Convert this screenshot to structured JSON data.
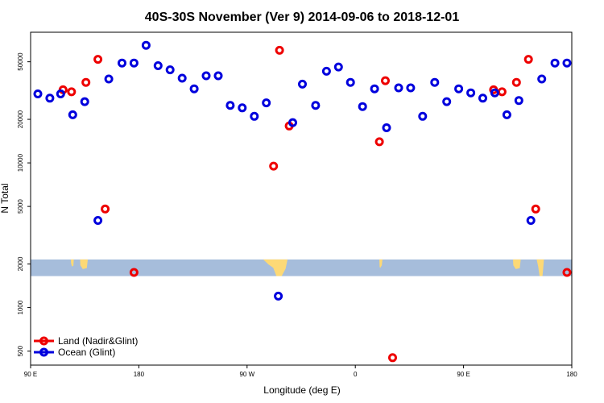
{
  "chart_data": {
    "type": "scatter",
    "title": "40S-30S November (Ver 9)   2014-09-06 to 2018-12-01",
    "xlabel": "Longitude (deg E)",
    "ylabel": "N Total",
    "x_scale": "longitude",
    "y_scale": "log",
    "xlim": [
      90,
      540
    ],
    "ylim": [
      400,
      80000
    ],
    "x_ticks": [
      {
        "value": 90,
        "label": "90 E"
      },
      {
        "value": 180,
        "label": "180"
      },
      {
        "value": 270,
        "label": "90 W"
      },
      {
        "value": 360,
        "label": "0"
      },
      {
        "value": 450,
        "label": "90 E"
      },
      {
        "value": 540,
        "label": "180"
      }
    ],
    "y_ticks": [
      {
        "value": 500,
        "label": "500"
      },
      {
        "value": 1000,
        "label": "1000"
      },
      {
        "value": 2000,
        "label": "2000"
      },
      {
        "value": 5000,
        "label": "5000"
      },
      {
        "value": 10000,
        "label": "10000"
      },
      {
        "value": 20000,
        "label": "20000"
      },
      {
        "value": 50000,
        "label": "50000"
      }
    ],
    "legend_position": "bottom-left",
    "map_band": {
      "ymin": 1650,
      "ymax": 2150,
      "ocean_color": "#a6bddb",
      "land_color": "#fdd976"
    },
    "series": [
      {
        "name": "Land (Nadir&Glint)",
        "color": "#ee0000",
        "points": [
          [
            117,
            32000
          ],
          [
            124,
            31000
          ],
          [
            136,
            36000
          ],
          [
            146,
            52000
          ],
          [
            152,
            4800
          ],
          [
            176,
            1750
          ],
          [
            292,
            9500
          ],
          [
            297,
            60000
          ],
          [
            305,
            18000
          ],
          [
            380,
            14000
          ],
          [
            385,
            37000
          ],
          [
            391,
            450
          ],
          [
            475,
            32000
          ],
          [
            482,
            31000
          ],
          [
            494,
            36000
          ],
          [
            504,
            52000
          ],
          [
            510,
            4800
          ],
          [
            536,
            1750
          ]
        ]
      },
      {
        "name": "Ocean (Glint)",
        "color": "#0000dd",
        "points": [
          [
            96,
            30000
          ],
          [
            106,
            28000
          ],
          [
            115,
            30000
          ],
          [
            125,
            21500
          ],
          [
            135,
            26500
          ],
          [
            146,
            4000
          ],
          [
            155,
            38000
          ],
          [
            166,
            49000
          ],
          [
            176,
            49000
          ],
          [
            186,
            65000
          ],
          [
            196,
            47000
          ],
          [
            206,
            44000
          ],
          [
            216,
            38500
          ],
          [
            226,
            32500
          ],
          [
            236,
            40000
          ],
          [
            246,
            40000
          ],
          [
            256,
            25000
          ],
          [
            266,
            24000
          ],
          [
            276,
            21000
          ],
          [
            286,
            26000
          ],
          [
            296,
            1200
          ],
          [
            308,
            19000
          ],
          [
            316,
            35000
          ],
          [
            327,
            25000
          ],
          [
            336,
            43000
          ],
          [
            346,
            46000
          ],
          [
            356,
            36000
          ],
          [
            366,
            24500
          ],
          [
            376,
            32500
          ],
          [
            386,
            17500
          ],
          [
            396,
            33000
          ],
          [
            406,
            33000
          ],
          [
            416,
            21000
          ],
          [
            426,
            36000
          ],
          [
            436,
            26500
          ],
          [
            446,
            32500
          ],
          [
            456,
            30500
          ],
          [
            466,
            28000
          ],
          [
            476,
            30500
          ],
          [
            486,
            21500
          ],
          [
            496,
            27000
          ],
          [
            506,
            4000
          ],
          [
            515,
            38000
          ],
          [
            526,
            49000
          ],
          [
            536,
            49000
          ]
        ]
      }
    ]
  }
}
